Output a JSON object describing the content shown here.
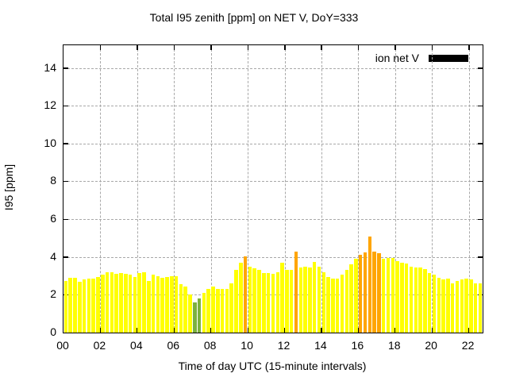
{
  "title": "Total I95 zenith [ppm] on NET V, DoY=333",
  "chart_data": {
    "type": "bar",
    "title": "Total I95 zenith [ppm] on NET V, DoY=333",
    "xlabel": "Time of day UTC (15-minute intervals)",
    "ylabel": "I95 [ppm]",
    "interval_minutes": 15,
    "start_time": "00:00",
    "end_time": "22:30",
    "xlim": [
      0,
      22.75
    ],
    "ylim": [
      0,
      15.2
    ],
    "xticks": [
      {
        "value": 0,
        "label": "00"
      },
      {
        "value": 2,
        "label": "02"
      },
      {
        "value": 4,
        "label": "04"
      },
      {
        "value": 6,
        "label": "06"
      },
      {
        "value": 8,
        "label": "08"
      },
      {
        "value": 10,
        "label": "10"
      },
      {
        "value": 12,
        "label": "12"
      },
      {
        "value": 14,
        "label": "14"
      },
      {
        "value": 16,
        "label": "16"
      },
      {
        "value": 18,
        "label": "18"
      },
      {
        "value": 20,
        "label": "20"
      },
      {
        "value": 22,
        "label": "22"
      }
    ],
    "yticks": [
      0,
      2,
      4,
      6,
      8,
      10,
      12,
      14
    ],
    "grid": true,
    "grid_color": "#a8a8a8",
    "legend": {
      "position": "top-right",
      "entries": [
        {
          "label": "ion net V",
          "swatch_color": "#000000"
        }
      ]
    },
    "colors": {
      "low": "#7CB13E",
      "mid": "#FFFF00",
      "high": "#FFA500"
    },
    "thresholds": {
      "green_below": 2.0,
      "orange_at_or_above": 4.0
    },
    "values": [
      2.75,
      2.9,
      2.9,
      2.7,
      2.8,
      2.85,
      2.85,
      2.95,
      3.05,
      3.2,
      3.2,
      3.1,
      3.15,
      3.1,
      3.05,
      2.95,
      3.15,
      3.2,
      2.75,
      3.05,
      3.0,
      2.9,
      2.95,
      3.0,
      3.0,
      2.55,
      2.45,
      2.0,
      1.6,
      1.8,
      2.1,
      2.3,
      2.45,
      2.3,
      2.3,
      2.3,
      2.6,
      3.3,
      3.7,
      4.05,
      3.5,
      3.4,
      3.3,
      3.15,
      3.15,
      3.1,
      3.2,
      3.7,
      3.3,
      3.3,
      4.3,
      3.45,
      3.5,
      3.45,
      3.75,
      3.5,
      3.2,
      2.95,
      2.85,
      2.85,
      3.05,
      3.3,
      3.6,
      3.9,
      4.1,
      4.25,
      5.1,
      4.3,
      4.2,
      3.9,
      3.95,
      3.95,
      3.8,
      3.7,
      3.65,
      3.5,
      3.45,
      3.45,
      3.35,
      3.15,
      3.05,
      2.9,
      2.8,
      2.85,
      2.6,
      2.75,
      2.8,
      2.85,
      2.8,
      2.6,
      2.6
    ]
  }
}
